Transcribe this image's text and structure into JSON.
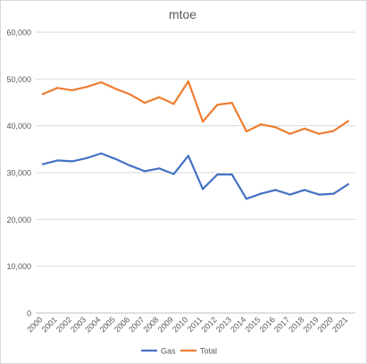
{
  "chart_data": {
    "type": "line",
    "title": "mtoe",
    "xlabel": "",
    "ylabel": "",
    "ylim": [
      0,
      60000
    ],
    "yticks": [
      0,
      10000,
      20000,
      30000,
      40000,
      50000,
      60000
    ],
    "ytick_labels": [
      "0",
      "10,000",
      "20,000",
      "30,000",
      "40,000",
      "50,000",
      "60,000"
    ],
    "categories": [
      "2000",
      "2001",
      "2002",
      "2003",
      "2004",
      "2005",
      "2006",
      "2007",
      "2008",
      "2009",
      "2010",
      "2011",
      "2012",
      "2013",
      "2014",
      "2015",
      "2016",
      "2017",
      "2018",
      "2019",
      "2020",
      "2021"
    ],
    "grid": true,
    "legend_position": "bottom",
    "series": [
      {
        "name": "Gas",
        "color": "#4472c4",
        "values": [
          31800,
          32600,
          32400,
          33100,
          34100,
          32900,
          31500,
          30300,
          30900,
          29700,
          33600,
          26500,
          29600,
          29600,
          24400,
          25500,
          26300,
          25300,
          26300,
          25300,
          25500,
          27500
        ]
      },
      {
        "name": "Total",
        "color": "#ed7d31",
        "values": [
          46800,
          48100,
          47600,
          48300,
          49300,
          47900,
          46700,
          44900,
          46100,
          44700,
          49500,
          40900,
          44500,
          44900,
          38800,
          40300,
          39700,
          38300,
          39400,
          38300,
          38900,
          41000
        ]
      }
    ]
  }
}
